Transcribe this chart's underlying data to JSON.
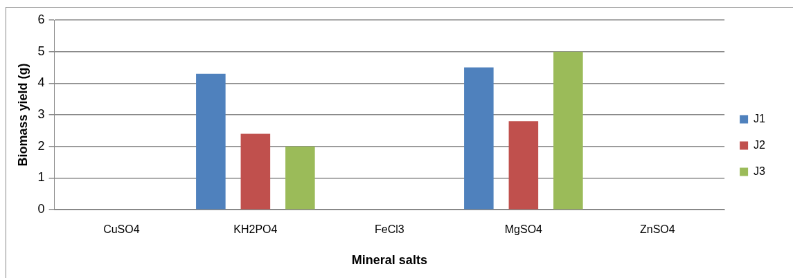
{
  "chart_data": {
    "type": "bar",
    "xlabel": "Mineral salts",
    "ylabel": "Biomass yield (g)",
    "categories": [
      "CuSO4",
      "KH2PO4",
      "FeCl3",
      "MgSO4",
      "ZnSO4"
    ],
    "series": [
      {
        "name": "J1",
        "color": "#4f81bd",
        "values": [
          0,
          4.3,
          0,
          4.5,
          0
        ]
      },
      {
        "name": "J2",
        "color": "#c0504d",
        "values": [
          0,
          2.4,
          0,
          2.8,
          0
        ]
      },
      {
        "name": "J3",
        "color": "#9bbb59",
        "values": [
          0,
          2.0,
          0,
          5.0,
          0
        ]
      }
    ],
    "ylim": [
      0,
      6
    ],
    "yticks": [
      0,
      1,
      2,
      3,
      4,
      5,
      6
    ],
    "grid": "y",
    "legend": "right"
  }
}
